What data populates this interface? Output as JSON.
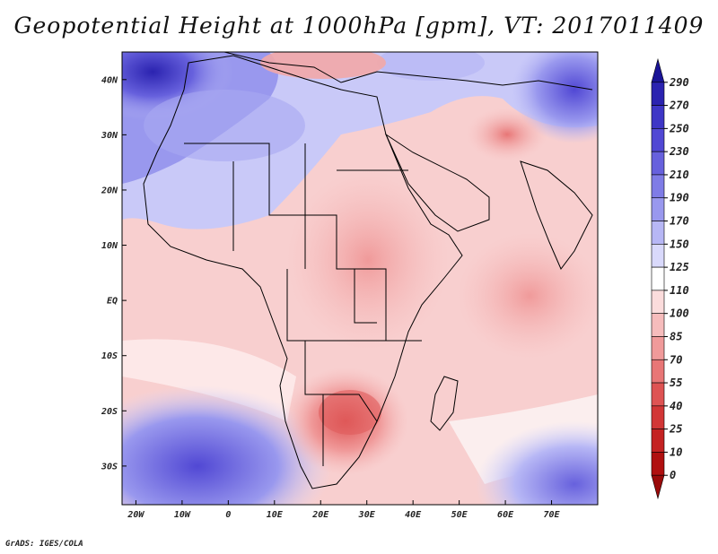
{
  "title": "Geopotential Height at 1000hPa [gpm], VT: 2017011409",
  "credit": "GrADS: IGES/COLA",
  "map": {
    "projection": "latlon",
    "lon_range": [
      -23,
      80
    ],
    "lat_range": [
      -37,
      45
    ],
    "lat_ticks": [
      {
        "value": 40,
        "label": "40N"
      },
      {
        "value": 30,
        "label": "30N"
      },
      {
        "value": 20,
        "label": "20N"
      },
      {
        "value": 10,
        "label": "10N"
      },
      {
        "value": 0,
        "label": "EQ"
      },
      {
        "value": -10,
        "label": "10S"
      },
      {
        "value": -20,
        "label": "20S"
      },
      {
        "value": -30,
        "label": "30S"
      }
    ],
    "lon_ticks": [
      {
        "value": -20,
        "label": "20W"
      },
      {
        "value": -10,
        "label": "10W"
      },
      {
        "value": 0,
        "label": "0"
      },
      {
        "value": 10,
        "label": "10E"
      },
      {
        "value": 20,
        "label": "20E"
      },
      {
        "value": 30,
        "label": "30E"
      },
      {
        "value": 40,
        "label": "40E"
      },
      {
        "value": 50,
        "label": "50E"
      },
      {
        "value": 60,
        "label": "60E"
      },
      {
        "value": 70,
        "label": "70E"
      }
    ],
    "coastline_color": "#000000"
  },
  "colorbar": {
    "levels": [
      "290",
      "270",
      "250",
      "230",
      "210",
      "190",
      "170",
      "150",
      "125",
      "110",
      "100",
      "85",
      "70",
      "55",
      "40",
      "25",
      "10",
      "0"
    ],
    "colors": [
      "#1a1496",
      "#2b23b0",
      "#3e36c6",
      "#5148d4",
      "#6761dd",
      "#7f7ce6",
      "#9998ee",
      "#b7b7f5",
      "#d9d9fb",
      "#ffffff",
      "#fbdcdc",
      "#f6bcbc",
      "#f09a9a",
      "#e87676",
      "#de5353",
      "#d23636",
      "#c42222",
      "#b01010",
      "#9a0a0a"
    ]
  }
}
